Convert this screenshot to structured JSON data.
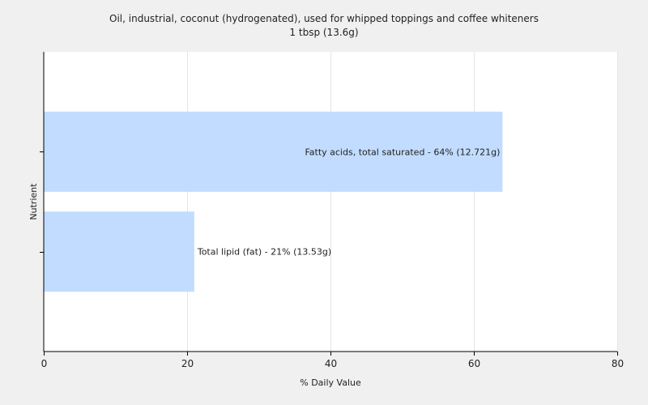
{
  "chart_data": {
    "type": "bar",
    "orientation": "horizontal",
    "title": "Oil, industrial, coconut (hydrogenated), used for whipped toppings and coffee whiteners",
    "subtitle": "1 tbsp (13.6g)",
    "xlabel": "% Daily Value",
    "ylabel": "Nutrient",
    "xlim": [
      0,
      80
    ],
    "xticks": [
      0,
      20,
      40,
      60,
      80
    ],
    "grid": true,
    "legend": "none",
    "bar_color": "#c2dcff",
    "categories": [
      "Fatty acids, total saturated",
      "Total lipid (fat)"
    ],
    "values": [
      64,
      21
    ],
    "labels": [
      "Fatty acids, total saturated - 64% (12.721g)",
      "Total lipid (fat) - 21% (13.53g)"
    ]
  }
}
